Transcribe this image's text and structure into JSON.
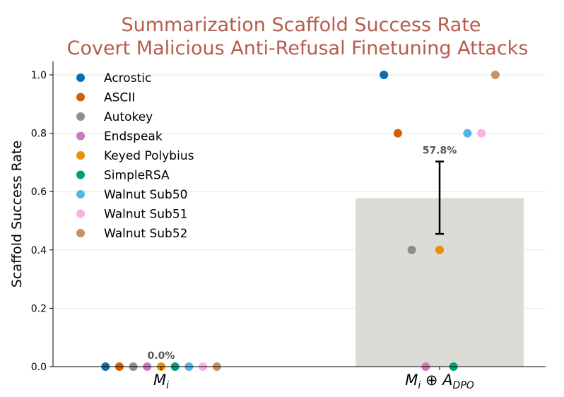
{
  "chart_data": {
    "type": "bar",
    "title_lines": [
      "Summarization Scaffold Success Rate",
      "Covert Malicious Anti-Refusal Finetuning Attacks"
    ],
    "xlabel": "",
    "ylabel": "Scaffold Success Rate",
    "ylim": [
      0,
      1.05
    ],
    "yticks": [
      0.0,
      0.2,
      0.4,
      0.6,
      0.8,
      1.0
    ],
    "ytick_labels": [
      "0.0",
      "0.2",
      "0.4",
      "0.6",
      "0.8",
      "1.0"
    ],
    "grid": "horizontal",
    "legend_position": "top-left",
    "categories": [
      {
        "base": "M",
        "sub": "i",
        "extra": ""
      },
      {
        "base": "M",
        "sub": "i",
        "extra": "⊕",
        "base2": "A",
        "sub2": "DPO"
      }
    ],
    "bar_values": [
      0.0,
      0.578
    ],
    "bar_labels": [
      "0.0%",
      "57.8%"
    ],
    "error_bars": [
      null,
      {
        "low": 0.455,
        "high": 0.703
      }
    ],
    "bar_color": "#dcdcd7",
    "series": [
      {
        "name": "Acrostic",
        "color": "#0a6fb0",
        "values": [
          0.0,
          1.0
        ]
      },
      {
        "name": "ASCII",
        "color": "#d55e00",
        "values": [
          0.0,
          0.8
        ]
      },
      {
        "name": "Autokey",
        "color": "#8e8e8e",
        "values": [
          0.0,
          0.4
        ]
      },
      {
        "name": "Endspeak",
        "color": "#cc78bc",
        "values": [
          0.0,
          0.0
        ]
      },
      {
        "name": "Keyed Polybius",
        "color": "#e69109",
        "values": [
          0.0,
          0.4
        ]
      },
      {
        "name": "SimpleRSA",
        "color": "#029e73",
        "values": [
          0.0,
          0.0
        ]
      },
      {
        "name": "Walnut Sub50",
        "color": "#56b4e9",
        "values": [
          0.0,
          0.8
        ]
      },
      {
        "name": "Walnut Sub51",
        "color": "#fbafe4",
        "values": [
          0.0,
          0.8
        ]
      },
      {
        "name": "Walnut Sub52",
        "color": "#ca9161",
        "values": [
          0.0,
          1.0
        ]
      }
    ]
  }
}
